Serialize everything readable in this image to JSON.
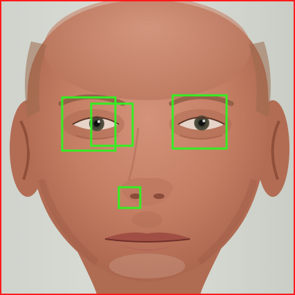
{
  "image": {
    "frame_color": "#ff1a1a",
    "box_color": "#33ee22",
    "background_color": "#d8dcd6",
    "skin_color": "#c7866c",
    "detections": [
      {
        "name": "detection-box-eye-left-large"
      },
      {
        "name": "detection-box-eye-left-small"
      },
      {
        "name": "detection-box-eye-right"
      },
      {
        "name": "detection-box-nose"
      }
    ]
  }
}
